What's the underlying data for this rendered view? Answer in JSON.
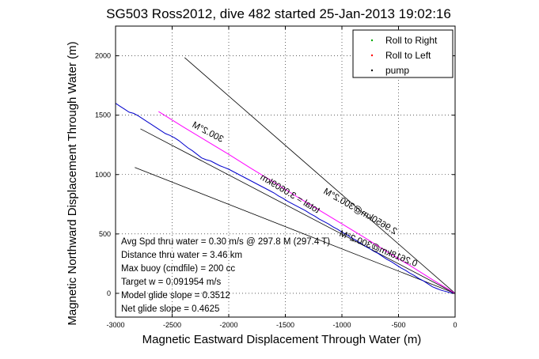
{
  "chart_data": {
    "type": "line",
    "title": "SG503 Ross2012, dive 482 started 25-Jan-2013 19:02:16",
    "xlabel": "Magnetic Eastward Displacement Through Water (m)",
    "ylabel": "Magnetic Northward Displacement Through Water (m)",
    "xlim": [
      -3000,
      0
    ],
    "ylim": [
      -200,
      2250
    ],
    "grid": true,
    "x_ticks": [
      -3000,
      -2500,
      -2000,
      -1500,
      -1000,
      -500,
      0
    ],
    "y_ticks": [
      0,
      500,
      1000,
      1500,
      2000
    ],
    "legend": {
      "placement": "top-right",
      "entries": [
        {
          "label": "Roll to Right",
          "color": "#00aa00"
        },
        {
          "label": "Roll to Left",
          "color": "#ff0000"
        },
        {
          "label": "pump",
          "color": "#000000"
        }
      ]
    },
    "series": [
      {
        "color": "#0000cc",
        "x": [
          -3000,
          -2960,
          -2920,
          -2880,
          -2840,
          -2800,
          -2760,
          -2720,
          -2680,
          -2640,
          -2600,
          -2560,
          -2520,
          -2480,
          -2440,
          -2400,
          -2360,
          -2320,
          -2280,
          -2240,
          -2200,
          -2160,
          -2120,
          -2080,
          -2040,
          -2000,
          -1960,
          -1920,
          -1880,
          -1840,
          -1800,
          -1760,
          -1720,
          -1680,
          -1640,
          -1600,
          -1560,
          -1520,
          -1480,
          -1440,
          -1400,
          -1360,
          -1320,
          -1280,
          -1240,
          -1200,
          -1160,
          -1120,
          -1080,
          -1040,
          -1000,
          -960,
          -920,
          -880,
          -840,
          -800,
          -760,
          -720,
          -680,
          -640,
          -600,
          -560,
          -520,
          -480,
          -440,
          -400,
          -360,
          -320,
          -280,
          -240,
          -200,
          -160,
          -120,
          -80,
          -40,
          0
        ],
        "y": [
          1600,
          1575,
          1550,
          1525,
          1515,
          1495,
          1470,
          1445,
          1420,
          1395,
          1370,
          1345,
          1330,
          1310,
          1285,
          1255,
          1225,
          1200,
          1170,
          1140,
          1125,
          1115,
          1095,
          1075,
          1060,
          1045,
          1025,
          1005,
          985,
          965,
          945,
          925,
          905,
          885,
          865,
          845,
          820,
          800,
          775,
          755,
          735,
          715,
          695,
          670,
          650,
          625,
          605,
          585,
          560,
          540,
          515,
          495,
          470,
          450,
          425,
          400,
          380,
          355,
          335,
          310,
          285,
          265,
          240,
          215,
          195,
          170,
          150,
          125,
          105,
          80,
          55,
          40,
          25,
          15,
          5,
          0
        ]
      },
      {
        "color": "#ff00ff",
        "x": [
          -2620,
          -2400,
          -2200,
          -2000,
          -1800,
          -1600,
          -1400,
          -1200,
          -1000,
          -800,
          -600,
          -400,
          -200,
          0
        ],
        "y": [
          1530,
          1400,
          1285,
          1170,
          1050,
          935,
          815,
          700,
          585,
          470,
          350,
          235,
          115,
          0
        ]
      }
    ],
    "guide_lines": [
      {
        "label": "300.2°M",
        "x": [
          -2390,
          0
        ],
        "y": [
          1985,
          0
        ]
      },
      {
        "label": "0.2618km@300.2°M",
        "x": [
          -2830,
          0
        ],
        "y": [
          1060,
          0
        ]
      },
      {
        "label": "",
        "x": [
          -2780,
          0
        ],
        "y": [
          1385,
          0
        ]
      }
    ],
    "line_labels": [
      "300.2°M",
      "2.9650km@300.2°M",
      "total = 3.0609km",
      "0.2618km@300.2°M"
    ],
    "annotations": [
      "Avg Spd thru water =  0.30 m/s @ 297.8    M (297.4 T)",
      "Distance thru water =  3.46 km",
      "Max buoy (cmdfile) = 200 cc",
      "Target w = 0.091954 m/s",
      "Model glide slope = 0.3512",
      "Net glide slope = 0.4625"
    ]
  }
}
